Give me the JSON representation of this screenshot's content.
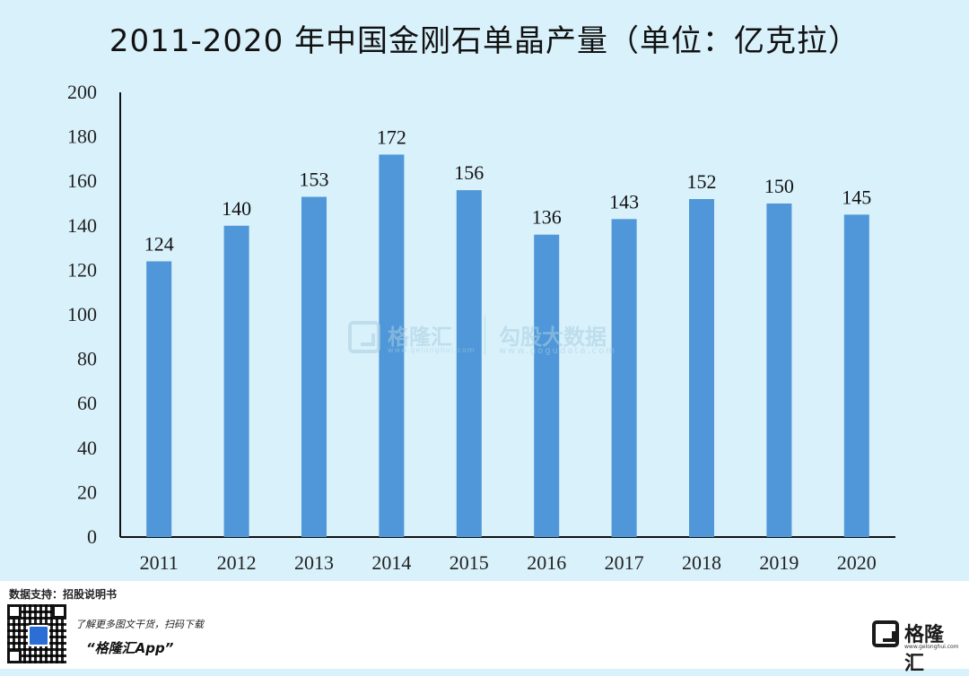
{
  "chart_data": {
    "type": "bar",
    "title": "2011-2020 年中国金刚石单晶产量（单位：亿克拉）",
    "categories": [
      "2011",
      "2012",
      "2013",
      "2014",
      "2015",
      "2016",
      "2017",
      "2018",
      "2019",
      "2020"
    ],
    "values": [
      124,
      140,
      153,
      172,
      156,
      136,
      143,
      152,
      150,
      145
    ],
    "ylim": [
      0,
      200
    ],
    "yticks": [
      0,
      20,
      40,
      60,
      80,
      100,
      120,
      140,
      160,
      180,
      200
    ],
    "xlabel": "",
    "ylabel": "",
    "grid": false,
    "bar_color": "#4f97d8"
  },
  "watermark": {
    "brand": "格隆汇",
    "brand_url": "www.gelonghui.com",
    "partner": "勾股大数据",
    "partner_url": "www.gogudata.com"
  },
  "footer": {
    "data_source": "数据支持：招股说明书",
    "promo": "了解更多图文干货，扫码下载",
    "app_name": "“格隆汇App”",
    "brand_name": "格隆汇",
    "brand_url": "www.gelonghui.com",
    "qr_icon": "qr-code-icon",
    "logo_icon": "gelonghui-logo-icon"
  }
}
